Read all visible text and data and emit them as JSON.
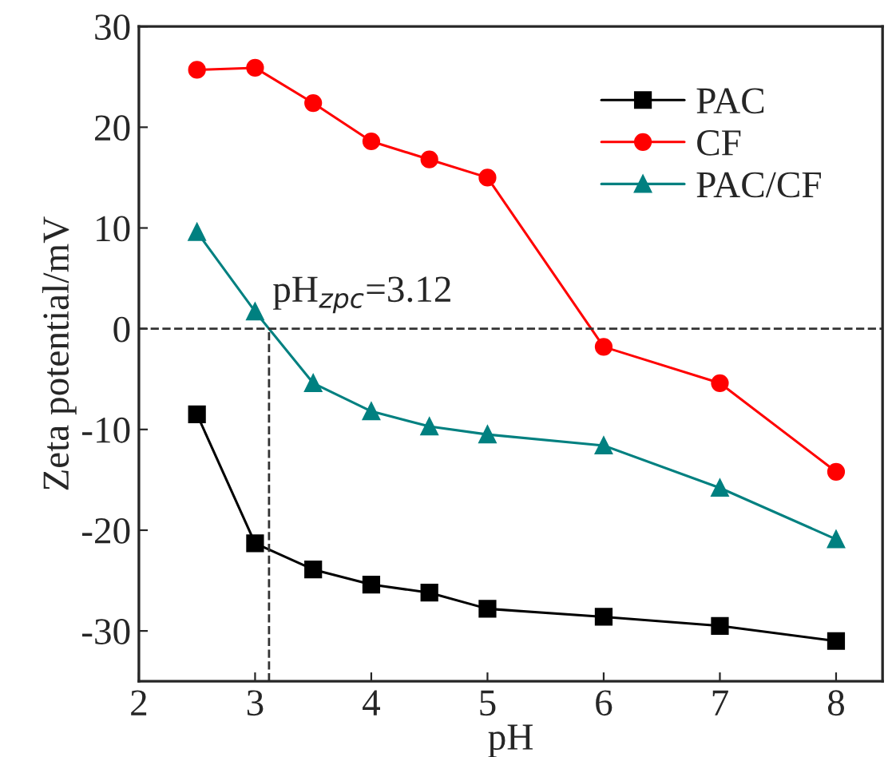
{
  "chart_data": {
    "type": "line",
    "xlabel": "pH",
    "ylabel": "Zeta potential/mV",
    "x": [
      2.5,
      3,
      3.5,
      4,
      4.5,
      5,
      6,
      7,
      8
    ],
    "series": [
      {
        "name": "PAC",
        "color": "#000000",
        "marker": "square",
        "values": [
          -8.5,
          -21.3,
          -23.9,
          -25.4,
          -26.2,
          -27.8,
          -28.6,
          -29.5,
          -31.0
        ]
      },
      {
        "name": "CF",
        "color": "#ff0000",
        "marker": "circle",
        "values": [
          25.7,
          25.9,
          22.4,
          18.6,
          16.8,
          15.0,
          -1.8,
          -5.4,
          -14.2
        ]
      },
      {
        "name": "PAC/CF",
        "color": "#008080",
        "marker": "triangle",
        "values": [
          9.6,
          1.7,
          -5.4,
          -8.2,
          -9.7,
          -10.5,
          -11.6,
          -15.8,
          -20.9
        ]
      }
    ],
    "xlim": [
      2,
      8.4
    ],
    "xticks": [
      2,
      3,
      4,
      5,
      6,
      7,
      8
    ],
    "ylim": [
      -35,
      30
    ],
    "yticks": [
      -30,
      -20,
      -10,
      0,
      10,
      20,
      30
    ],
    "ref_lines": [
      {
        "axis": "y",
        "value": 0,
        "color": "#333333",
        "line_style": "dashed"
      },
      {
        "axis": "x",
        "value": 3.12,
        "label": "pH$_{zpc}$=3.12",
        "color": "#333333",
        "line_style": "dashed"
      }
    ],
    "legend": "top right",
    "grid": false,
    "line_style": "solid"
  }
}
